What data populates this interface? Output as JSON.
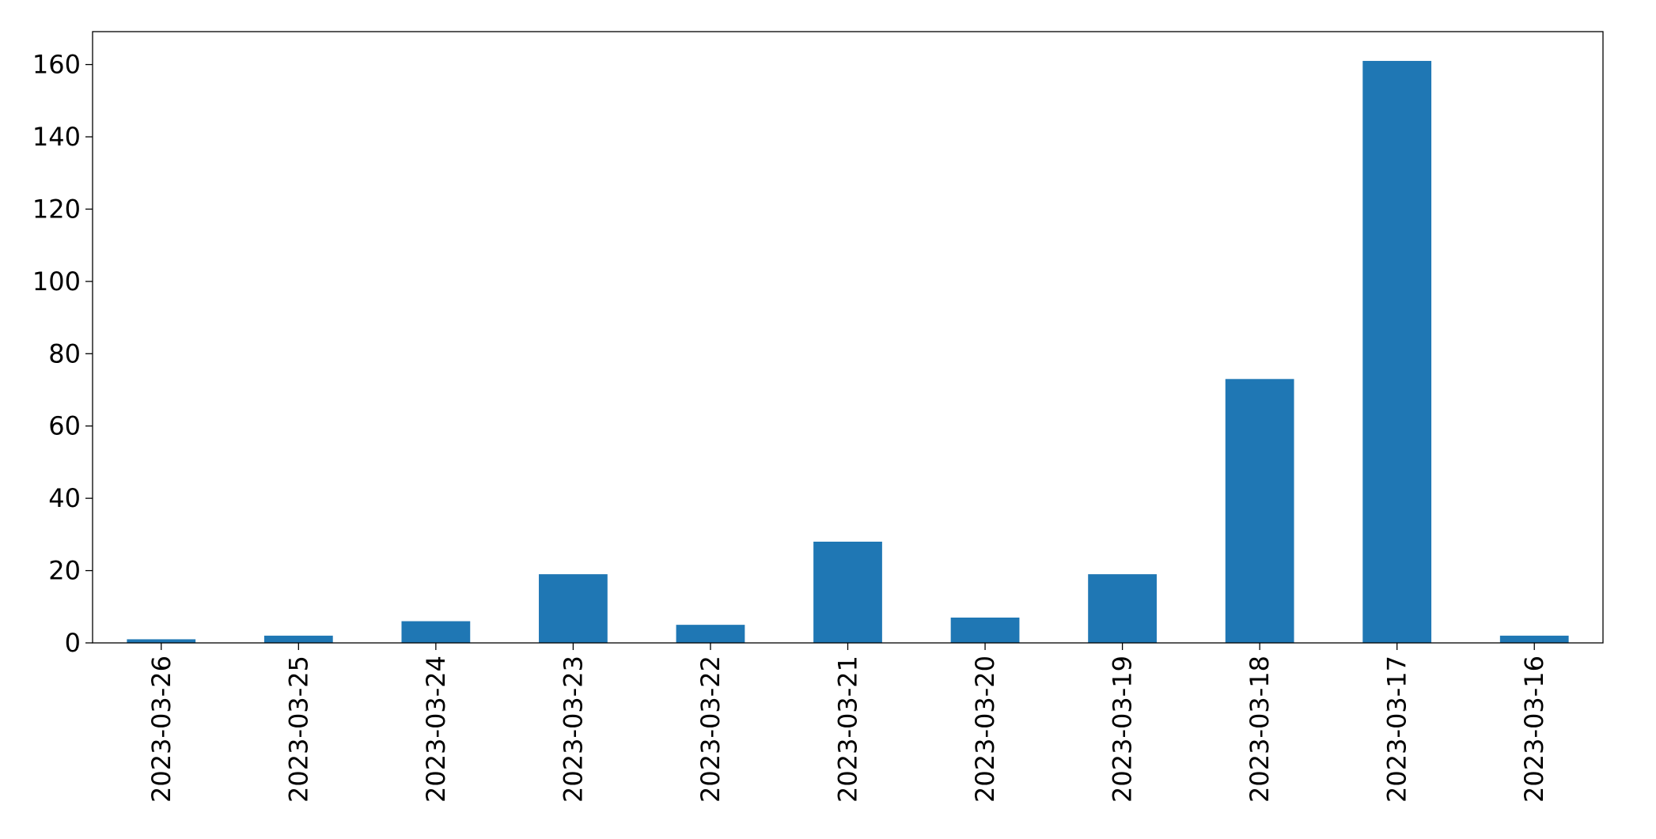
{
  "chart_data": {
    "type": "bar",
    "categories": [
      "2023-03-26",
      "2023-03-25",
      "2023-03-24",
      "2023-03-23",
      "2023-03-22",
      "2023-03-21",
      "2023-03-20",
      "2023-03-19",
      "2023-03-18",
      "2023-03-17",
      "2023-03-16"
    ],
    "values": [
      1,
      2,
      6,
      19,
      5,
      28,
      7,
      19,
      73,
      161,
      2
    ],
    "color": "#1f77b4",
    "ylim": [
      0,
      169.1
    ],
    "yticks": [
      0,
      20,
      40,
      60,
      80,
      100,
      120,
      140,
      160
    ],
    "grid": false
  }
}
